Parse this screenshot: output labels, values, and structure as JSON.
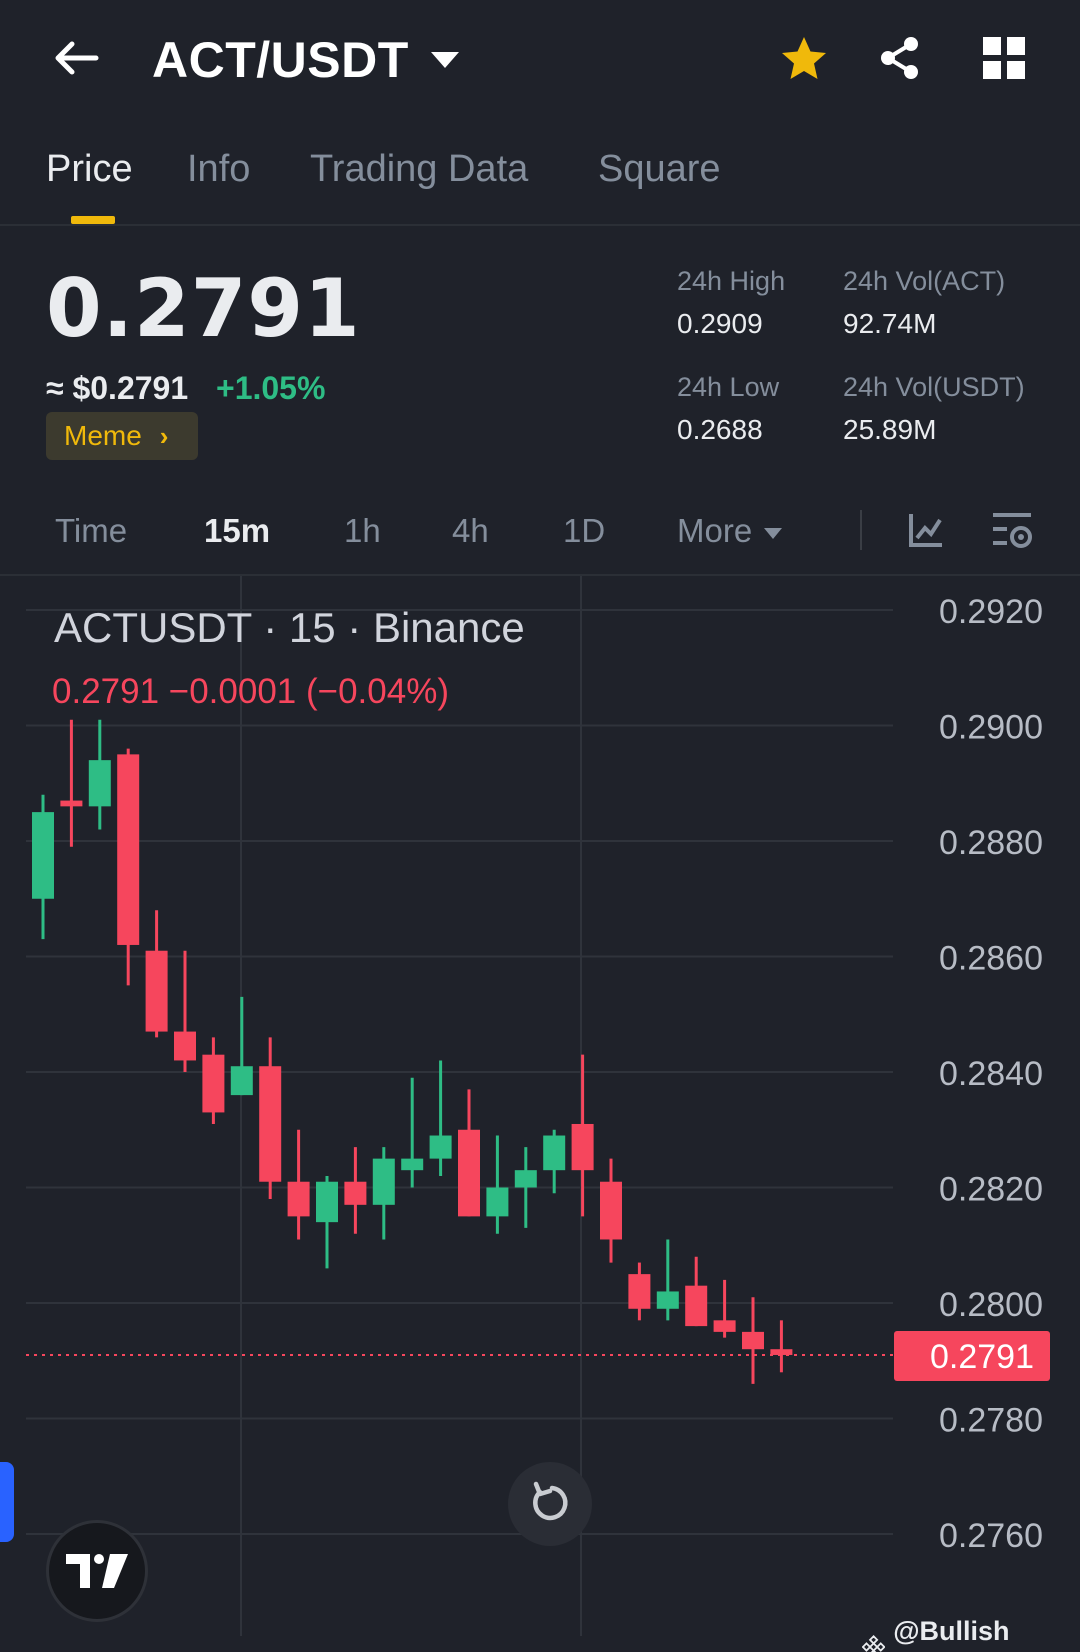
{
  "header": {
    "pair": "ACT/USDT"
  },
  "tabs": [
    {
      "label": "Price",
      "active": true
    },
    {
      "label": "Info",
      "active": false
    },
    {
      "label": "Trading Data",
      "active": false
    },
    {
      "label": "Square",
      "active": false
    }
  ],
  "ticker": {
    "last_price": "0.2791",
    "usd_price": "≈ $0.2791",
    "change": "+1.05%",
    "tag": "Meme",
    "high_label": "24h High",
    "high_value": "0.2909",
    "low_label": "24h Low",
    "low_value": "0.2688",
    "vol_base_label": "24h Vol(ACT)",
    "vol_base_value": "92.74M",
    "vol_quote_label": "24h Vol(USDT)",
    "vol_quote_value": "25.89M"
  },
  "intervals": [
    {
      "label": "Time",
      "active": false
    },
    {
      "label": "15m",
      "active": true
    },
    {
      "label": "1h",
      "active": false
    },
    {
      "label": "4h",
      "active": false
    },
    {
      "label": "1D",
      "active": false
    },
    {
      "label": "More",
      "active": false
    }
  ],
  "chart": {
    "symbol_line": "ACTUSDT · 15 · Binance",
    "ohlc_line": "0.2791  −0.0001 (−0.04%)",
    "current_price_label": "0.2791",
    "watermark": "@Bullish Buster"
  },
  "colors": {
    "up": "#2ebd85",
    "down": "#f6465d",
    "accent": "#f0b90b",
    "background": "#1f222a"
  },
  "chart_data": {
    "type": "candlestick",
    "interval": "15",
    "exchange": "Binance",
    "y_ticks": [
      "0.2920",
      "0.2900",
      "0.2880",
      "0.2860",
      "0.2840",
      "0.2820",
      "0.2800",
      "0.2780",
      "0.2760"
    ],
    "ylim": [
      0.2759,
      0.2925
    ],
    "last_price": 0.2791,
    "candles": [
      {
        "o": 0.287,
        "h": 0.2888,
        "l": 0.2863,
        "c": 0.2885
      },
      {
        "o": 0.2887,
        "h": 0.2901,
        "l": 0.2879,
        "c": 0.2886
      },
      {
        "o": 0.2886,
        "h": 0.2901,
        "l": 0.2882,
        "c": 0.2894
      },
      {
        "o": 0.2895,
        "h": 0.2896,
        "l": 0.2855,
        "c": 0.2862
      },
      {
        "o": 0.2861,
        "h": 0.2868,
        "l": 0.2846,
        "c": 0.2847
      },
      {
        "o": 0.2847,
        "h": 0.2861,
        "l": 0.284,
        "c": 0.2842
      },
      {
        "o": 0.2843,
        "h": 0.2846,
        "l": 0.2831,
        "c": 0.2833
      },
      {
        "o": 0.2836,
        "h": 0.2853,
        "l": 0.2836,
        "c": 0.2841
      },
      {
        "o": 0.2841,
        "h": 0.2846,
        "l": 0.2818,
        "c": 0.2821
      },
      {
        "o": 0.2821,
        "h": 0.283,
        "l": 0.2811,
        "c": 0.2815
      },
      {
        "o": 0.2814,
        "h": 0.2822,
        "l": 0.2806,
        "c": 0.2821
      },
      {
        "o": 0.2821,
        "h": 0.2827,
        "l": 0.2812,
        "c": 0.2817
      },
      {
        "o": 0.2817,
        "h": 0.2827,
        "l": 0.2811,
        "c": 0.2825
      },
      {
        "o": 0.2823,
        "h": 0.2839,
        "l": 0.282,
        "c": 0.2825
      },
      {
        "o": 0.2825,
        "h": 0.2842,
        "l": 0.2822,
        "c": 0.2829
      },
      {
        "o": 0.283,
        "h": 0.2837,
        "l": 0.2815,
        "c": 0.2815
      },
      {
        "o": 0.2815,
        "h": 0.2829,
        "l": 0.2812,
        "c": 0.282
      },
      {
        "o": 0.282,
        "h": 0.2827,
        "l": 0.2813,
        "c": 0.2823
      },
      {
        "o": 0.2823,
        "h": 0.283,
        "l": 0.2819,
        "c": 0.2829
      },
      {
        "o": 0.2831,
        "h": 0.2843,
        "l": 0.2815,
        "c": 0.2823
      },
      {
        "o": 0.2821,
        "h": 0.2825,
        "l": 0.2807,
        "c": 0.2811
      },
      {
        "o": 0.2805,
        "h": 0.2807,
        "l": 0.2797,
        "c": 0.2799
      },
      {
        "o": 0.2799,
        "h": 0.2811,
        "l": 0.2797,
        "c": 0.2802
      },
      {
        "o": 0.2803,
        "h": 0.2808,
        "l": 0.2796,
        "c": 0.2796
      },
      {
        "o": 0.2797,
        "h": 0.2804,
        "l": 0.2794,
        "c": 0.2795
      },
      {
        "o": 0.2795,
        "h": 0.2801,
        "l": 0.2786,
        "c": 0.2792
      },
      {
        "o": 0.2792,
        "h": 0.2797,
        "l": 0.2788,
        "c": 0.2791
      }
    ]
  }
}
